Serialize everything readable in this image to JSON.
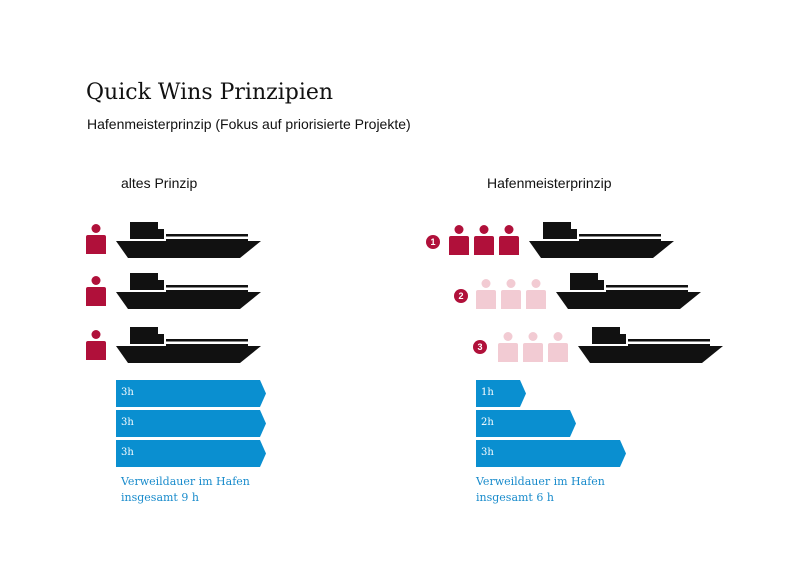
{
  "header": {
    "title": "Quick Wins Prinzipien",
    "subtitle": "Hafenmeisterprinzip (Fokus auf priorisierte Projekte)"
  },
  "colors": {
    "person_active": "#b0103a",
    "person_waiting": "#f2cbd3",
    "ship": "#111111",
    "bar": "#0a8fd0",
    "caption": "#1a8ccc"
  },
  "left": {
    "label": "altes Prinzip",
    "bars": [
      {
        "label": "3h",
        "hours": 3
      },
      {
        "label": "3h",
        "hours": 3
      },
      {
        "label": "3h",
        "hours": 3
      }
    ],
    "caption_line1": "Verweildauer im Hafen",
    "caption_line2": "insgesamt 9 h"
  },
  "right": {
    "label": "Hafenmeisterprinzip",
    "steps": [
      {
        "badge": "1",
        "status": "active"
      },
      {
        "badge": "2",
        "status": "waiting"
      },
      {
        "badge": "3",
        "status": "waiting"
      }
    ],
    "bars": [
      {
        "label": "1h",
        "hours": 1
      },
      {
        "label": "2h",
        "hours": 2
      },
      {
        "label": "3h",
        "hours": 3
      }
    ],
    "caption_line1": "Verweildauer im Hafen",
    "caption_line2": "insgesamt 6 h"
  }
}
